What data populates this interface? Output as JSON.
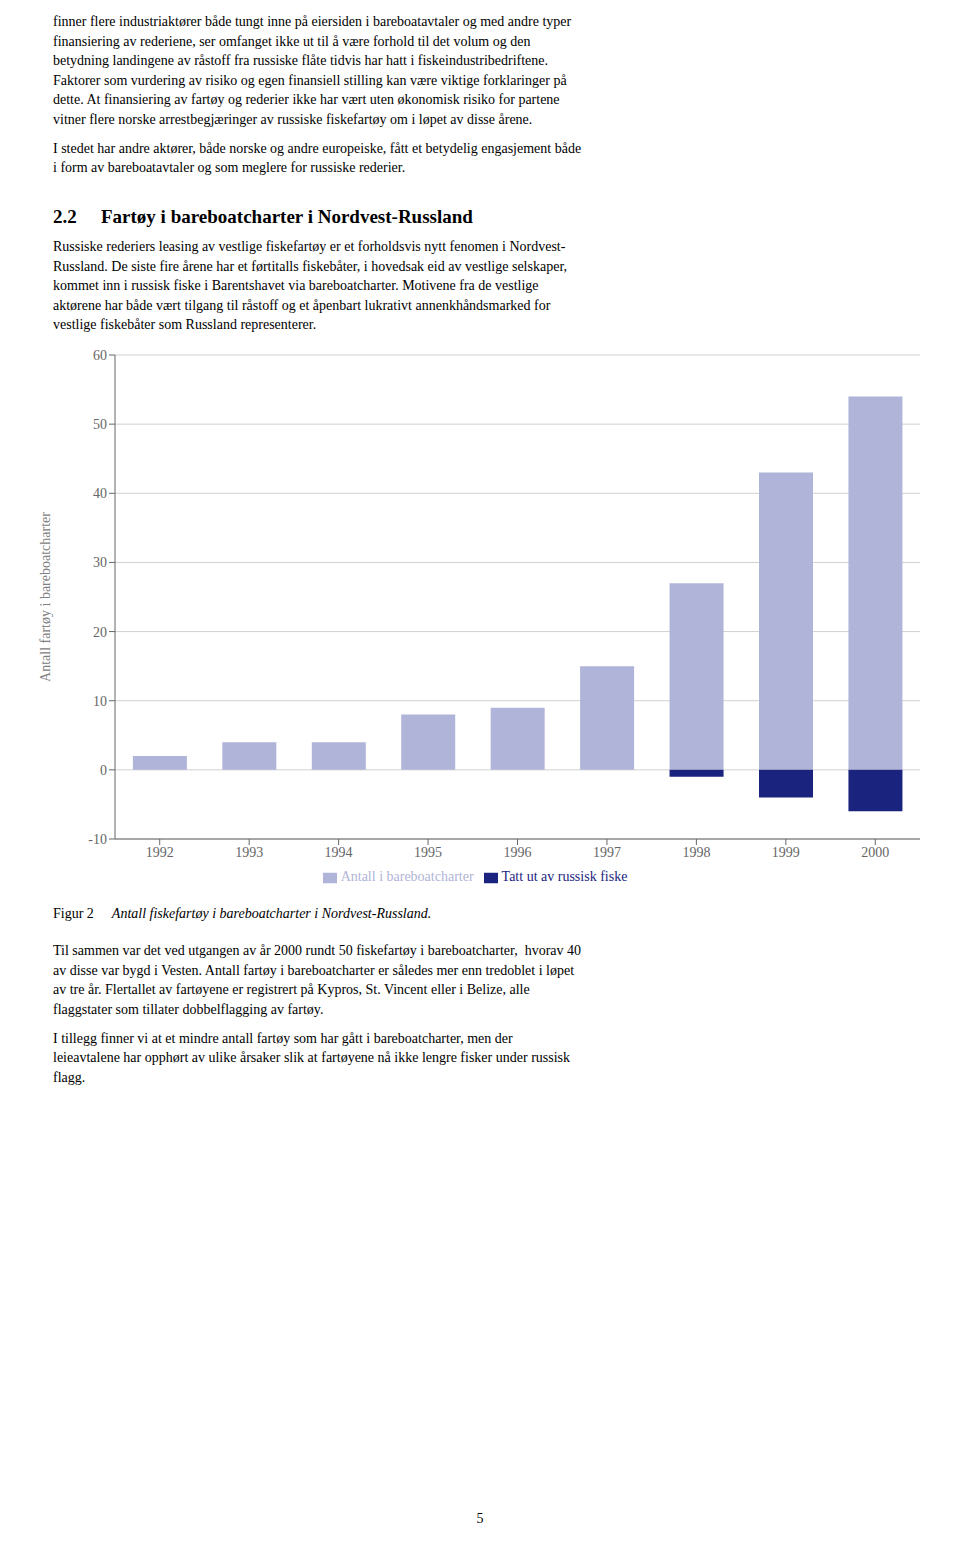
{
  "chart_data": {
    "type": "bar",
    "title": "Figur 2",
    "subtitle": "Antall fiskefartøy i bareboatcharter i Nordvest-Russland.",
    "ylabel": "Antall fartøy i bareboatcharter",
    "categories": [
      "1992",
      "1993",
      "1994",
      "1995",
      "1996",
      "1997",
      "1998",
      "1999",
      "2000"
    ],
    "series": [
      {
        "name": "Antall i bareboatcharter",
        "color": "#b0b4d8",
        "values": [
          2,
          4,
          4,
          8,
          9,
          15,
          27,
          43,
          54
        ]
      },
      {
        "name": "Tatt ut av russisk fiske",
        "color": "#1a237e",
        "values": [
          0,
          0,
          0,
          0,
          0,
          0,
          -1,
          -4,
          -6
        ]
      }
    ],
    "ylim": [
      -10,
      60
    ],
    "yticks": [
      -10,
      0,
      10,
      20,
      30,
      40,
      50,
      60
    ],
    "grid": true,
    "legend": "bottom",
    "stacked": true,
    "annotations": [
      "finner flere industriaktører både tungt inne på eiersiden i bareboatavtaler og med andre typer",
      "finansiering av rederiene, ser omfanget ikke ut til å være forhold til det volum og den",
      "betydning landingene av råstoff fra russiske flåte tidvis har hatt i fiskeindustribedriftene.",
      "Faktorer som vurdering av risiko og egen finansiell stilling kan være viktige forklaringer på",
      "dette. At finansiering av fartøy og rederier ikke har vært uten økonomisk risiko for partene",
      "vitner flere norske arrestbegjæringer av russiske fiskefartøy om i løpet av disse årene.",
      "I stedet har andre aktører, både norske og andre europeiske, fått et betydelig engasjement både",
      "i form av bareboatavtaler og som meglere for russiske rederier.",
      "2.2",
      "Fartøy i bareboatcharter i Nordvest-Russland",
      "Russiske rederiers leasing av vestlige fiskefartøy er et forholdsvis nytt fenomen i Nordvest-",
      "Russland. De siste fire årene har et førtitalls fiskebåter, i hovedsak eid av vestlige selskaper,",
      "kommet inn i russisk fiske i Barentshavet via bareboatcharter. Motivene fra de vestlige",
      "aktørene har både vært tilgang til råstoff og et åpenbart lukrativt annenkhåndsmarked for",
      "vestlige fiskebåter som Russland representerer.",
      "Til sammen var det ved utgangen av år 2000 rundt 50 fiskefartøy i bareboatcharter,  hvorav 40",
      "av disse var bygd i Vesten. Antall fartøy i bareboatcharter er således mer enn tredoblet i løpet",
      "av tre år. Flertallet av fartøyene er registrert på Kypros, St. Vincent eller i Belize, alle",
      "flaggstater som tillater dobbelflagging av fartøy.",
      "I tillegg finner vi at et mindre antall fartøy som har gått i bareboatcharter, men der",
      "leieavtalene har opphørt av ulike årsaker slik at fartøyene nå ikke lengre fisker under russisk",
      "flagg.",
      "5"
    ]
  }
}
